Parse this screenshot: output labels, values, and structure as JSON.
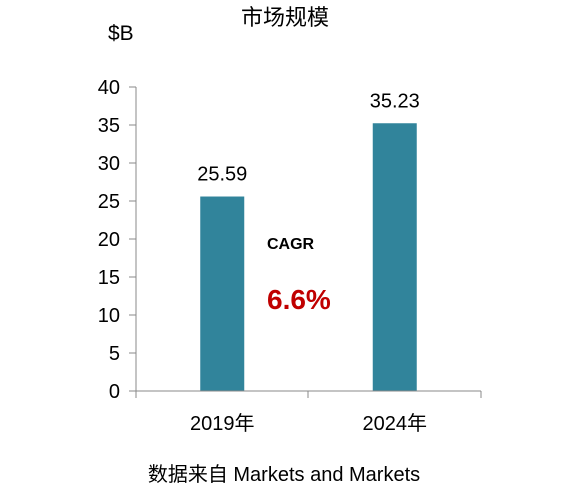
{
  "chart_data": {
    "type": "bar",
    "title": "市场规模",
    "ylabel": "$B",
    "categories": [
      "2019年",
      "2024年"
    ],
    "values": [
      25.59,
      35.23
    ],
    "data_labels": [
      "25.59",
      "35.23"
    ],
    "ylim": [
      0,
      40
    ],
    "yticks": [
      0,
      5,
      10,
      15,
      20,
      25,
      30,
      35,
      40
    ],
    "grid": false,
    "legend": "none",
    "bar_color": "#31849B",
    "annotation": {
      "label": "CAGR",
      "value": "6.6%",
      "value_color": "#C00000"
    },
    "source": "数据来自 Markets and Markets"
  }
}
